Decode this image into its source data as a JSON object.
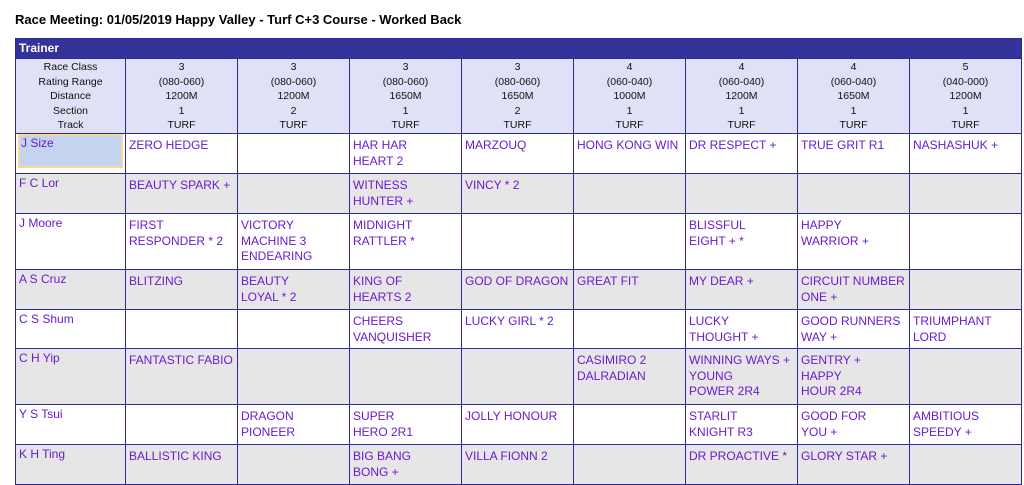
{
  "title": "Race Meeting: 01/05/2019 Happy Valley - Turf C+3 Course - Worked Back",
  "table_label": "Trainer",
  "header_labels": [
    "Race Class",
    "Rating Range",
    "Distance",
    "Section",
    "Track"
  ],
  "races": [
    [
      "3",
      "(080-060)",
      "1200M",
      "1",
      "TURF"
    ],
    [
      "3",
      "(080-060)",
      "1200M",
      "2",
      "TURF"
    ],
    [
      "3",
      "(080-060)",
      "1650M",
      "1",
      "TURF"
    ],
    [
      "3",
      "(080-060)",
      "1650M",
      "2",
      "TURF"
    ],
    [
      "4",
      "(060-040)",
      "1000M",
      "1",
      "TURF"
    ],
    [
      "4",
      "(060-040)",
      "1200M",
      "1",
      "TURF"
    ],
    [
      "4",
      "(060-040)",
      "1650M",
      "1",
      "TURF"
    ],
    [
      "5",
      "(040-000)",
      "1200M",
      "1",
      "TURF"
    ]
  ],
  "rows": [
    {
      "trainer": "J Size",
      "selected": true,
      "cells": [
        [
          "ZERO HEDGE"
        ],
        [],
        [
          "HAR HAR\nHEART 2"
        ],
        [
          "MARZOUQ"
        ],
        [
          "HONG KONG WIN"
        ],
        [
          "DR RESPECT +"
        ],
        [
          "TRUE GRIT R1"
        ],
        [
          "NASHASHUK +"
        ]
      ]
    },
    {
      "trainer": "F C Lor",
      "cells": [
        [
          "BEAUTY SPARK +"
        ],
        [],
        [
          "WITNESS\nHUNTER +"
        ],
        [
          "VINCY * 2"
        ],
        [],
        [],
        [],
        []
      ]
    },
    {
      "trainer": "J Moore",
      "cells": [
        [
          "FIRST\nRESPONDER * 2"
        ],
        [
          "VICTORY\nMACHINE 3",
          "ENDEARING"
        ],
        [
          "MIDNIGHT\nRATTLER *"
        ],
        [],
        [],
        [
          "BLISSFUL\nEIGHT + *"
        ],
        [
          "HAPPY\nWARRIOR +"
        ],
        []
      ]
    },
    {
      "trainer": "A S Cruz",
      "cells": [
        [
          "BLITZING"
        ],
        [
          "BEAUTY\nLOYAL * 2"
        ],
        [
          "KING OF\nHEARTS 2"
        ],
        [
          "GOD OF DRAGON"
        ],
        [
          "GREAT FIT"
        ],
        [
          "MY DEAR +"
        ],
        [
          "CIRCUIT NUMBER\nONE +"
        ],
        []
      ]
    },
    {
      "trainer": "C S Shum",
      "cells": [
        [],
        [],
        [
          "CHEERS\nVANQUISHER"
        ],
        [
          "LUCKY GIRL * 2"
        ],
        [],
        [
          "LUCKY\nTHOUGHT +"
        ],
        [
          "GOOD RUNNERS\nWAY +"
        ],
        [
          "TRIUMPHANT\nLORD"
        ]
      ]
    },
    {
      "trainer": "C H Yip",
      "cells": [
        [
          "FANTASTIC FABIO"
        ],
        [],
        [],
        [],
        [
          "CASIMIRO 2",
          "DALRADIAN"
        ],
        [
          "WINNING WAYS +",
          "YOUNG\nPOWER 2R4"
        ],
        [
          "GENTRY +",
          "HAPPY\nHOUR 2R4"
        ],
        []
      ]
    },
    {
      "trainer": "Y S Tsui",
      "cells": [
        [],
        [
          "DRAGON\nPIONEER"
        ],
        [
          "SUPER\nHERO 2R1"
        ],
        [
          "JOLLY HONOUR"
        ],
        [],
        [
          "STARLIT\nKNIGHT R3"
        ],
        [
          "GOOD FOR\nYOU +"
        ],
        [
          "AMBITIOUS\nSPEEDY +"
        ]
      ]
    },
    {
      "trainer": "K H Ting",
      "cells": [
        [
          "BALLISTIC KING"
        ],
        [],
        [
          "BIG BANG\nBONG +"
        ],
        [
          "VILLA FIONN 2"
        ],
        [],
        [
          "DR PROACTIVE *"
        ],
        [
          "GLORY STAR +"
        ],
        []
      ]
    }
  ]
}
